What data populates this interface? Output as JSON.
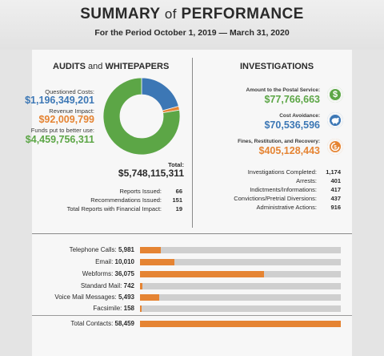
{
  "header": {
    "title_main": "SUMMARY",
    "title_of": "of",
    "title_end": "PERFORMANCE",
    "subtitle": "For the Period October 1, 2019 — March 31, 2020"
  },
  "audits": {
    "title_main": "AUDITS",
    "title_and": "and",
    "title_end": "WHITEPAPERS",
    "questioned_label": "Questioned Costs:",
    "questioned_value": "$1,196,349,201",
    "revenue_label": "Revenue Impact:",
    "revenue_value": "$92,009,799",
    "funds_label": "Funds put to better use:",
    "funds_value": "$4,459,756,311",
    "total_label": "Total:",
    "total_value": "$5,748,115,311",
    "stats": [
      {
        "label": "Reports Issued:",
        "value": "66"
      },
      {
        "label": "Recommendations Issued:",
        "value": "151"
      },
      {
        "label": "Total Reports with Financial Impact:",
        "value": "19"
      }
    ],
    "colors": {
      "questioned": "#3c77b5",
      "revenue": "#e58433",
      "funds": "#5ca646"
    }
  },
  "investigations": {
    "title": "INVESTIGATIONS",
    "postal_label": "Amount to the Postal Service:",
    "postal_value": "$77,766,663",
    "postal_icon": "dollar-icon",
    "avoid_label": "Cost Avoidance:",
    "avoid_value": "$70,536,596",
    "avoid_icon": "piggy-bank-icon",
    "fines_label": "Fines, Restitution, and Recovery:",
    "fines_value": "$405,128,443",
    "fines_icon": "recovery-icon",
    "stats": [
      {
        "label": "Investigations Completed:",
        "value": "1,174"
      },
      {
        "label": "Arrests:",
        "value": "401"
      },
      {
        "label": "Indictments/Informations:",
        "value": "417"
      },
      {
        "label": "Convictions/Pretrial Diversions:",
        "value": "437"
      },
      {
        "label": "Administrative Actions:",
        "value": "916"
      }
    ]
  },
  "contacts": {
    "rows": [
      {
        "label": "Telephone Calls:",
        "value": "5,981"
      },
      {
        "label": "Email:",
        "value": "10,010"
      },
      {
        "label": "Webforms:",
        "value": "36,075"
      },
      {
        "label": "Standard Mail:",
        "value": "742"
      },
      {
        "label": "Voice Mail Messages:",
        "value": "5,493"
      },
      {
        "label": "Facsimile:",
        "value": "158"
      }
    ],
    "total": {
      "label": "Total Contacts:",
      "value": "58,459"
    },
    "bar_color": "#e58433",
    "track_color": "#cfcfcf"
  },
  "chart_data": [
    {
      "type": "pie",
      "categories": [
        "Questioned Costs",
        "Revenue Impact",
        "Funds put to better use"
      ],
      "values": [
        1196349201,
        92009799,
        4459756311
      ],
      "total": 5748115311
    },
    {
      "type": "bar",
      "categories": [
        "Telephone Calls",
        "Email",
        "Webforms",
        "Standard Mail",
        "Voice Mail Messages",
        "Facsimile",
        "Total Contacts"
      ],
      "values": [
        5981,
        10010,
        36075,
        742,
        5493,
        158,
        58459
      ],
      "xlim": [
        0,
        58459
      ]
    }
  ]
}
